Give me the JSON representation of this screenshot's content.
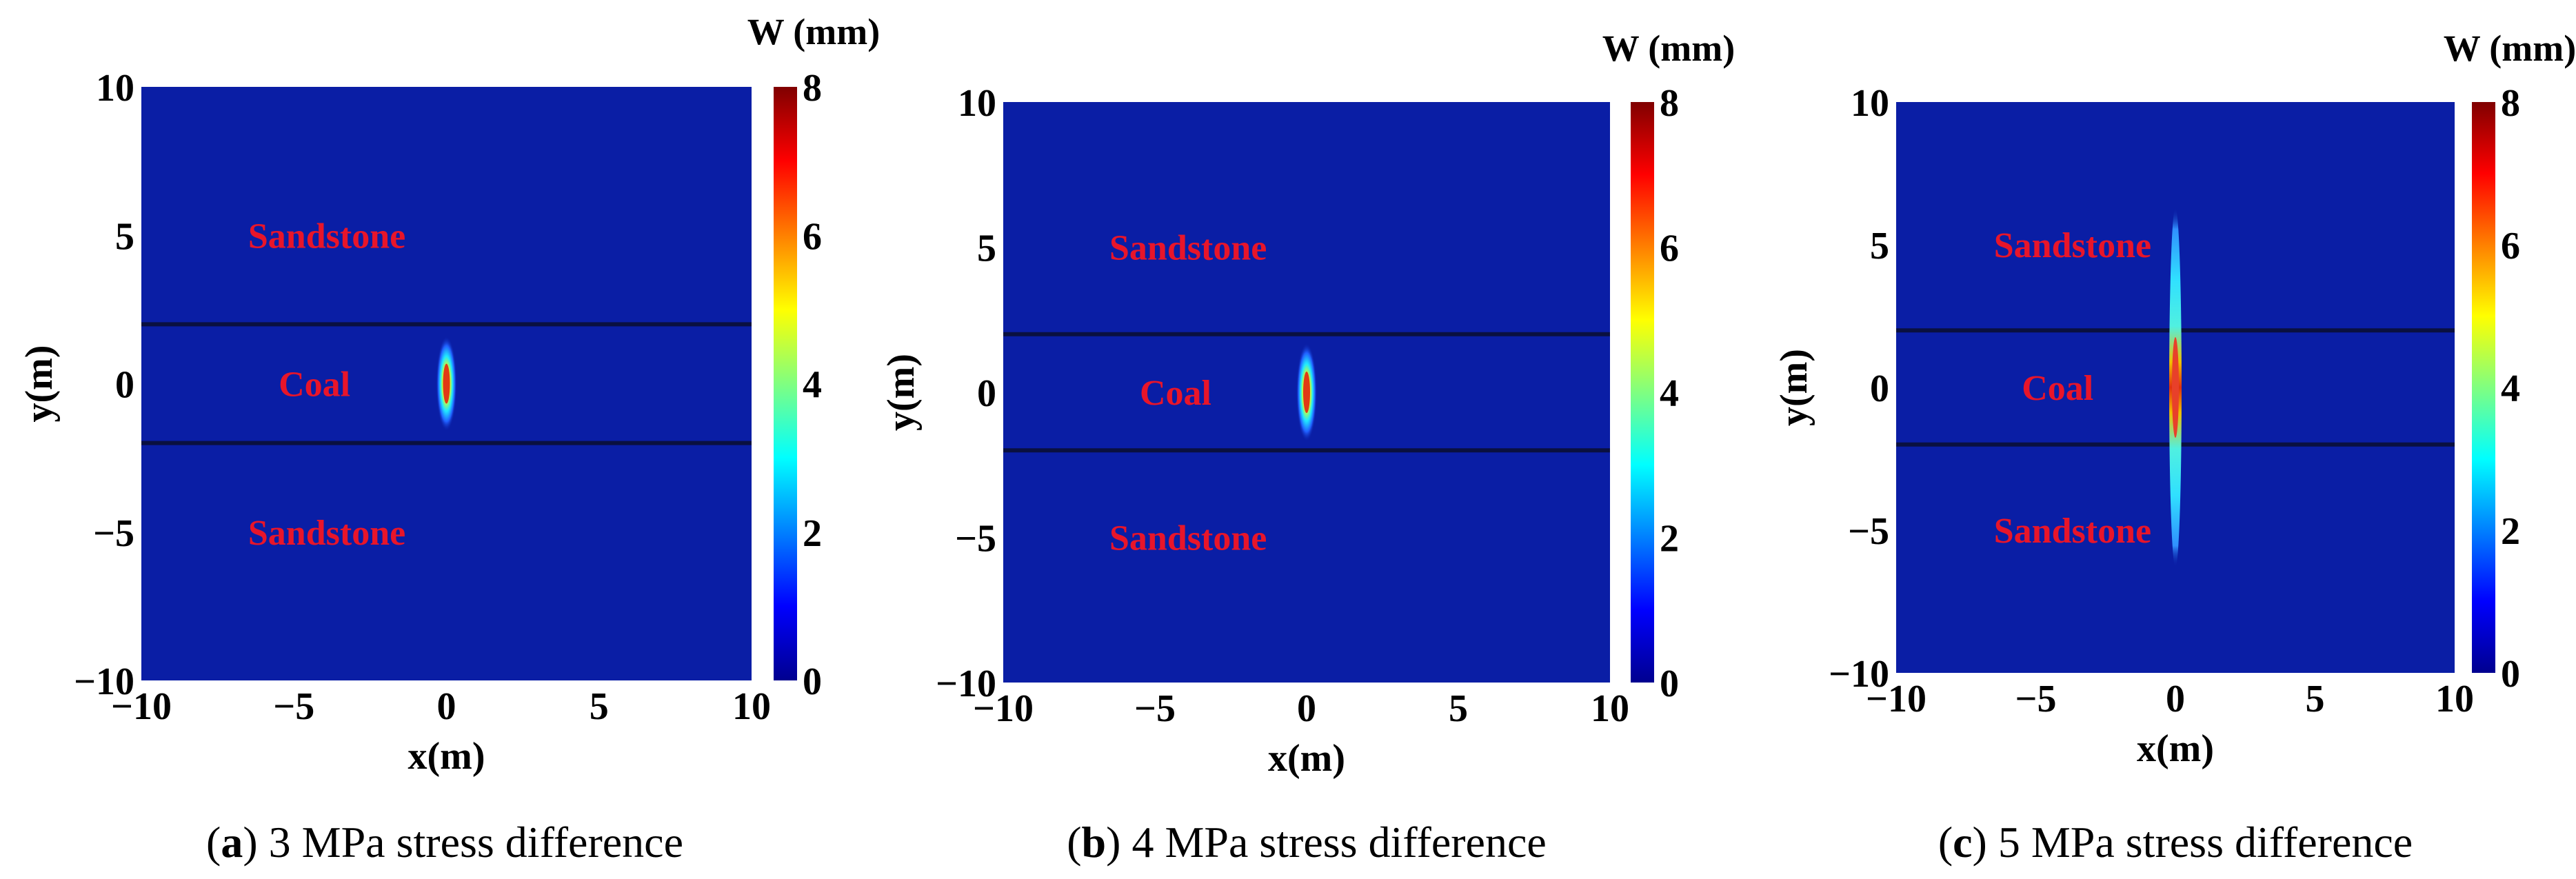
{
  "figure": {
    "colors": {
      "field": "#0A1EA5",
      "boundary": "#0A1040",
      "region_text": "#E8152A"
    },
    "colormap": [
      "#00008F",
      "#0000FF",
      "#0080FF",
      "#00FFFF",
      "#80FF80",
      "#FFFF00",
      "#FF8000",
      "#FF0000",
      "#800000"
    ]
  },
  "chart_data": [
    {
      "type": "heatmap",
      "panel": "a",
      "caption_letter": "a",
      "caption_text": " 3 MPa stress difference",
      "xlabel": "x(m)",
      "ylabel": "y(m)",
      "xlim": [
        -10,
        10
      ],
      "ylim": [
        -10,
        10
      ],
      "xticks": [
        "−10",
        "−5",
        "0",
        "5",
        "10"
      ],
      "yticks": [
        "10",
        "5",
        "0",
        "−5",
        "−10"
      ],
      "colorbar": {
        "title": "W (mm)",
        "range": [
          0,
          8
        ],
        "ticks": [
          "8",
          "6",
          "4",
          "2",
          "0"
        ]
      },
      "layer_boundaries_y": [
        2,
        -2
      ],
      "regions": [
        {
          "name": "Sandstone",
          "x": -6.5,
          "y": 5
        },
        {
          "name": "Coal",
          "x": -5.5,
          "y": 0
        },
        {
          "name": "Sandstone",
          "x": -6.5,
          "y": -5
        }
      ],
      "fracture": {
        "x": 0,
        "y_extent": [
          -1.6,
          1.6
        ],
        "max_width_mm": 8
      }
    },
    {
      "type": "heatmap",
      "panel": "b",
      "caption_letter": "b",
      "caption_text": " 4 MPa stress difference",
      "xlabel": "x(m)",
      "ylabel": "y(m)",
      "xlim": [
        -10,
        10
      ],
      "ylim": [
        -10,
        10
      ],
      "xticks": [
        "−10",
        "−5",
        "0",
        "5",
        "10"
      ],
      "yticks": [
        "10",
        "5",
        "0",
        "−5",
        "−10"
      ],
      "colorbar": {
        "title": "W (mm)",
        "range": [
          0,
          8
        ],
        "ticks": [
          "8",
          "6",
          "4",
          "2",
          "0"
        ]
      },
      "layer_boundaries_y": [
        2,
        -2
      ],
      "regions": [
        {
          "name": "Sandstone",
          "x": -6.5,
          "y": 5
        },
        {
          "name": "Coal",
          "x": -5.5,
          "y": 0
        },
        {
          "name": "Sandstone",
          "x": -6.5,
          "y": -5
        }
      ],
      "fracture": {
        "x": 0,
        "y_extent": [
          -1.7,
          1.7
        ],
        "max_width_mm": 8
      }
    },
    {
      "type": "heatmap",
      "panel": "c",
      "caption_letter": "c",
      "caption_text": " 5 MPa stress difference",
      "xlabel": "x(m)",
      "ylabel": "y(m)",
      "xlim": [
        -10,
        10
      ],
      "ylim": [
        -10,
        10
      ],
      "xticks": [
        "−10",
        "−5",
        "0",
        "5",
        "10"
      ],
      "yticks": [
        "10",
        "5",
        "0",
        "−5",
        "−10"
      ],
      "colorbar": {
        "title": "W (mm)",
        "range": [
          0,
          8
        ],
        "ticks": [
          "8",
          "6",
          "4",
          "2",
          "0"
        ]
      },
      "layer_boundaries_y": [
        2,
        -2
      ],
      "regions": [
        {
          "name": "Sandstone",
          "x": -6.5,
          "y": 5
        },
        {
          "name": "Coal",
          "x": -5.5,
          "y": 0
        },
        {
          "name": "Sandstone",
          "x": -6.5,
          "y": -5
        }
      ],
      "fracture": {
        "x": 0,
        "y_extent": [
          -6.3,
          6.3
        ],
        "max_width_mm": 8
      }
    }
  ]
}
